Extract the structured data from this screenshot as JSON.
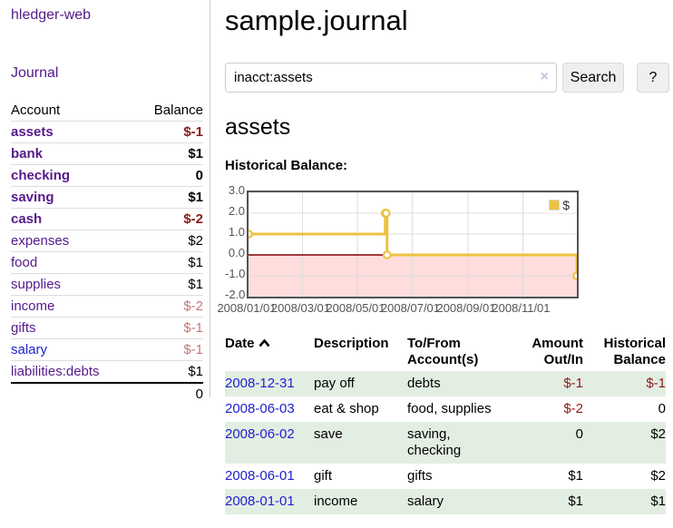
{
  "app": {
    "brand": "hledger-web",
    "nav": {
      "journal": "Journal"
    }
  },
  "colors": {
    "link_purple": "#551A8B",
    "link_blue": "#2222CC",
    "negative_strong": "#8B1A1A",
    "negative_muted": "#C47878",
    "row_stripe_green": "#E3EEE3",
    "series_yellow": "#EDC240",
    "negative_region_pink": "#FFDDDD",
    "zero_line_red": "#800000",
    "chart_border_gray": "#545454",
    "grid_gray": "#DDDDDD"
  },
  "icons": {
    "clear_search": "×",
    "sort_ascending": "chevron-up"
  },
  "sidebar": {
    "headers": {
      "account": "Account",
      "balance": "Balance"
    },
    "rows": [
      {
        "name": "assets",
        "balance": "$-1"
      },
      {
        "name": "bank",
        "balance": "$1"
      },
      {
        "name": "checking",
        "balance": "0"
      },
      {
        "name": "saving",
        "balance": "$1"
      },
      {
        "name": "cash",
        "balance": "$-2"
      },
      {
        "name": "expenses",
        "balance": "$2"
      },
      {
        "name": "food",
        "balance": "$1"
      },
      {
        "name": "supplies",
        "balance": "$1"
      },
      {
        "name": "income",
        "balance": "$-2"
      },
      {
        "name": "gifts",
        "balance": "$-1"
      },
      {
        "name": "salary",
        "balance": "$-1"
      },
      {
        "name": "liabilities:debts",
        "balance": "$1"
      }
    ],
    "total": "0"
  },
  "main": {
    "title": "sample.journal",
    "search": {
      "value": "inacct:assets",
      "button_label": "Search",
      "help_label": "?"
    },
    "account_heading": "assets",
    "chart_label": "Historical Balance:",
    "register": {
      "headers": {
        "date": "Date",
        "description": "Description",
        "account": "To/From Account(s)",
        "amount": "Amount Out/In",
        "balance": "Historical Balance"
      },
      "rows": [
        {
          "date": "2008-12-31",
          "description": "pay off",
          "account": "debts",
          "amount": "$-1",
          "balance": "$-1"
        },
        {
          "date": "2008-06-03",
          "description": "eat & shop",
          "account": "food, supplies",
          "amount": "$-2",
          "balance": "0"
        },
        {
          "date": "2008-06-02",
          "description": "save",
          "account": "saving, checking",
          "amount": "0",
          "balance": "$2"
        },
        {
          "date": "2008-06-01",
          "description": "gift",
          "account": "gifts",
          "amount": "$1",
          "balance": "$2"
        },
        {
          "date": "2008-01-01",
          "description": "income",
          "account": "salary",
          "amount": "$1",
          "balance": "$1"
        }
      ]
    }
  },
  "chart_data": {
    "type": "line",
    "step": true,
    "title": "Historical Balance",
    "series": [
      {
        "name": "$",
        "color": "#EDC240",
        "points": [
          {
            "date": "2008-01-01",
            "value": 1
          },
          {
            "date": "2008-06-01",
            "value": 2
          },
          {
            "date": "2008-06-02",
            "value": 2
          },
          {
            "date": "2008-06-03",
            "value": 0
          },
          {
            "date": "2008-12-31",
            "value": -1
          }
        ]
      }
    ],
    "ylim": [
      -2,
      3
    ],
    "yticks": [
      "3.0",
      "2.0",
      "1.0",
      "0.0",
      "-1.0",
      "-2.0"
    ],
    "xticks": [
      {
        "label": "2008/01/01",
        "date": "2008-01-01"
      },
      {
        "label": "2008/03/01",
        "date": "2008-03-01"
      },
      {
        "label": "2008/05/01",
        "date": "2008-05-01"
      },
      {
        "label": "2008/07/01",
        "date": "2008-07-01"
      },
      {
        "label": "2008/09/01",
        "date": "2008-09-01"
      },
      {
        "label": "2008/11/01",
        "date": "2008-11-01"
      }
    ],
    "xrange": {
      "start": "2008-01-01",
      "end": "2008-12-31"
    },
    "legend": {
      "label": "$",
      "position": "top-right"
    },
    "grid": true,
    "negative_region_color": "#FFDDDD",
    "zero_line_color": "#800000"
  }
}
